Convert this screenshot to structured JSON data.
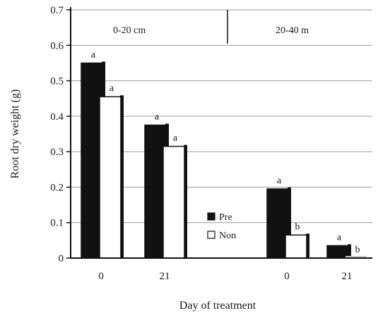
{
  "chart_data": {
    "type": "bar",
    "title": "",
    "xlabel": "Day of treatment",
    "ylabel": "Root dry weight (g)",
    "ylim": [
      0,
      0.7
    ],
    "yticks": [
      "0",
      "0.1",
      "0.2",
      "0.3",
      "0.4",
      "0.5",
      "0.6",
      "0.7"
    ],
    "grid": true,
    "legend_position": "center",
    "panels": [
      "0-20 cm",
      "20-40 m"
    ],
    "categories": [
      "0",
      "21",
      "0",
      "21"
    ],
    "series": [
      {
        "name": "Pre",
        "color": "#111111",
        "values": [
          0.55,
          0.375,
          0.195,
          0.035
        ],
        "labels": [
          "a",
          "a",
          "a",
          "a"
        ]
      },
      {
        "name": "Non",
        "color": "#ffffff",
        "values": [
          0.455,
          0.315,
          0.065,
          0.0
        ],
        "labels": [
          "a",
          "a",
          "b",
          "b"
        ]
      }
    ]
  }
}
